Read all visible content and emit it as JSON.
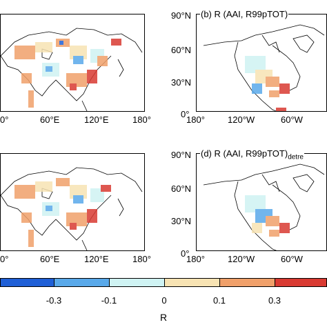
{
  "panels": [
    {
      "id": "a",
      "title": "",
      "x_ticks": [
        "0°",
        "60°E",
        "120°E",
        "180°"
      ],
      "y_ticks": []
    },
    {
      "id": "b",
      "title": "(b) R (AAI, R99pTOT)",
      "x_ticks": [
        "180°",
        "120°W",
        "60°W"
      ],
      "y_ticks": [
        "90°N",
        "60°N",
        "30°N",
        "0°"
      ]
    },
    {
      "id": "c",
      "title": "",
      "x_ticks": [
        "0°",
        "60°E",
        "120°E",
        "180°"
      ],
      "y_ticks": []
    },
    {
      "id": "d",
      "title": "(d) R (AAI, R99pTOT)",
      "title_sub": "detre",
      "x_ticks": [
        "180°",
        "120°W",
        "60°W"
      ],
      "y_ticks": [
        "90°N",
        "60°N",
        "30°N",
        "0°"
      ]
    }
  ],
  "colorbar": {
    "label": "R",
    "tick_labels": [
      "-0.3",
      "-0.1",
      "0",
      "0.1",
      "0.3"
    ],
    "colors": [
      "#1f5fd6",
      "#59a9ea",
      "#cff3f3",
      "#f7e3b3",
      "#f0a06a",
      "#d93a32"
    ]
  }
}
